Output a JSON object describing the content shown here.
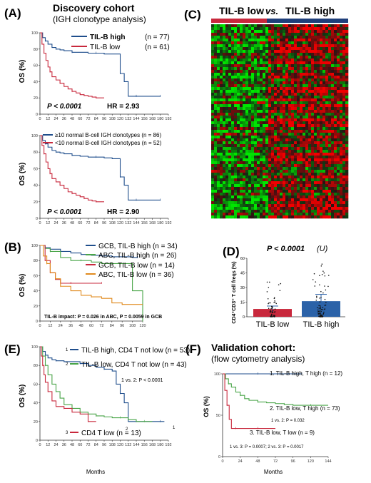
{
  "colors": {
    "blue": "#1f4e8c",
    "red": "#c8283c",
    "green": "#49a548",
    "orange": "#e08a1e",
    "bar_red": "#c8283c",
    "bar_blue": "#2b62a8"
  },
  "A": {
    "panel": "(A)",
    "cohort": "Discovery cohort",
    "cohort_sub": "(IGH clonotype analysis)",
    "ylabel": "OS (%)",
    "top": {
      "legend": [
        {
          "name": "TIL-B high",
          "n": "(n = 77)"
        },
        {
          "name": "TIL-B low",
          "n": "(n = 61)"
        }
      ],
      "pvalue": "P < 0.0001",
      "hr": "HR = 2.93"
    },
    "bottom": {
      "legend": [
        {
          "name": "≥10 normal B-cell IGH clonotypes (n = 86)"
        },
        {
          "name": "<10 normal B-cell IGH clonotypes (n = 52)"
        }
      ],
      "pvalue": "P < 0.0001",
      "hr": "HR = 2.90"
    }
  },
  "C": {
    "panel": "(C)",
    "low": "TIL-B low",
    "vs": "vs.",
    "high": "TIL-B high"
  },
  "B": {
    "panel": "(B)",
    "ylabel": "OS (%)",
    "legend": [
      {
        "label": "GCB, TIL-B high (n = 34)"
      },
      {
        "label": "ABC, TIL-B high (n = 26)"
      },
      {
        "label": "GCB, TIL-B low (n = 14)"
      },
      {
        "label": "ABC, TIL-B low (n = 36)"
      }
    ],
    "impact": "TIL-B impact: P = 0.026 in ABC, P = 0.0059 in GCB"
  },
  "D": {
    "panel": "(D)",
    "pvalue": "P < 0.0001",
    "test": "(U)",
    "ylabel": "CD4⁺CD3⁺ T cell freqs (%)",
    "categories": [
      "TIL-B low",
      "TIL-B high"
    ]
  },
  "E": {
    "panel": "(E)",
    "ylabel": "OS (%)",
    "xlabel": "Months",
    "legend": [
      {
        "num": "1",
        "label": "TIL-B high, CD4 T not low (n = 53)"
      },
      {
        "num": "2",
        "label": "TIL-B low, CD4 T not low (n = 43)"
      },
      {
        "num": "3",
        "label": "CD4 T low (n = 13)"
      }
    ],
    "compare": "1 vs. 2: P < 0.0001",
    "end_labels": [
      "2",
      "1"
    ]
  },
  "F": {
    "panel": "(F)",
    "cohort": "Validation cohort:",
    "cohort_sub": "(flow cytometry analysis)",
    "ylabel": "OS (%)",
    "xlabel": "Months",
    "legend": [
      {
        "label": "1. TIL-B high, T high (n = 12)"
      },
      {
        "label": "2. TIL-B low, T high (n = 73)"
      },
      {
        "label": "3. TIL-B low, T low (n = 9)"
      }
    ],
    "cmp12": "1 vs. 2: P = 0.032",
    "cmp13": "1 vs. 3: P = 0.0007; 2 vs. 3: P = 0.0017"
  },
  "chart_data": [
    {
      "type": "line",
      "id": "A_top",
      "xlim": [
        0,
        192
      ],
      "ylim": [
        0,
        100
      ],
      "x_ticks": [
        0,
        12,
        24,
        36,
        48,
        60,
        72,
        84,
        96,
        108,
        120,
        132,
        144,
        156,
        168,
        180,
        192
      ],
      "y_ticks": [
        0,
        20,
        40,
        60,
        80,
        100
      ],
      "series": [
        {
          "name": "TIL-B high",
          "color": "#1f4e8c",
          "x": [
            0,
            4,
            8,
            12,
            18,
            24,
            30,
            36,
            48,
            60,
            72,
            84,
            96,
            108,
            120,
            126,
            132,
            144,
            156,
            168,
            180
          ],
          "y": [
            100,
            94,
            90,
            86,
            82,
            80,
            79,
            78,
            76,
            76,
            75,
            75,
            74,
            74,
            50,
            40,
            22,
            22,
            22,
            22,
            22
          ]
        },
        {
          "name": "TIL-B low",
          "color": "#c8283c",
          "x": [
            0,
            3,
            6,
            9,
            12,
            15,
            18,
            24,
            30,
            36,
            42,
            48,
            54,
            60,
            66,
            72,
            78,
            84,
            96
          ],
          "y": [
            100,
            86,
            75,
            66,
            58,
            52,
            46,
            42,
            38,
            34,
            31,
            28,
            26,
            24,
            23,
            22,
            21,
            20,
            20
          ]
        }
      ]
    },
    {
      "type": "line",
      "id": "A_bottom",
      "xlim": [
        0,
        192
      ],
      "ylim": [
        0,
        100
      ],
      "x_ticks": [
        0,
        12,
        24,
        36,
        48,
        60,
        72,
        84,
        96,
        108,
        120,
        132,
        144,
        156,
        168,
        180,
        192
      ],
      "y_ticks": [
        0,
        20,
        40,
        60,
        80,
        100
      ],
      "series": [
        {
          "name": "≥10 normal B-cell IGH clonotypes",
          "color": "#1f4e8c",
          "x": [
            0,
            4,
            8,
            12,
            18,
            24,
            30,
            36,
            48,
            60,
            72,
            84,
            96,
            108,
            120,
            126,
            132,
            144,
            156,
            168,
            180
          ],
          "y": [
            100,
            94,
            90,
            86,
            82,
            80,
            79,
            78,
            76,
            75,
            74,
            74,
            73,
            72,
            50,
            40,
            22,
            22,
            22,
            22,
            22
          ]
        },
        {
          "name": "<10 normal B-cell IGH clonotypes",
          "color": "#c8283c",
          "x": [
            0,
            3,
            6,
            9,
            12,
            15,
            18,
            24,
            30,
            36,
            42,
            48,
            54,
            60,
            66,
            72,
            78,
            84,
            96
          ],
          "y": [
            100,
            88,
            78,
            68,
            60,
            54,
            48,
            44,
            40,
            36,
            32,
            30,
            28,
            26,
            24,
            22,
            21,
            20,
            20
          ]
        }
      ]
    },
    {
      "type": "line",
      "id": "B",
      "xlim": [
        0,
        120
      ],
      "ylim": [
        0,
        100
      ],
      "x_ticks": [
        0,
        12,
        24,
        36,
        48,
        60,
        72,
        84,
        96,
        108,
        120
      ],
      "y_ticks": [
        0,
        20,
        40,
        60,
        80,
        100
      ],
      "series": [
        {
          "name": "GCB, TIL-B high",
          "color": "#1f4e8c",
          "x": [
            0,
            6,
            12,
            24,
            36,
            48,
            60,
            72,
            84,
            96,
            108,
            114
          ],
          "y": [
            100,
            97,
            95,
            92,
            90,
            88,
            87,
            86,
            85,
            85,
            84,
            84
          ]
        },
        {
          "name": "ABC, TIL-B high",
          "color": "#49a548",
          "x": [
            0,
            6,
            12,
            24,
            36,
            48,
            60,
            72,
            84,
            96,
            108,
            120
          ],
          "y": [
            100,
            96,
            92,
            84,
            80,
            80,
            78,
            76,
            76,
            76,
            40,
            0
          ]
        },
        {
          "name": "GCB, TIL-B low",
          "color": "#c8283c",
          "x": [
            0,
            6,
            12,
            18,
            24,
            36,
            48,
            60,
            72
          ],
          "y": [
            100,
            80,
            64,
            55,
            50,
            50,
            50,
            50,
            50
          ]
        },
        {
          "name": "ABC, TIL-B low",
          "color": "#e08a1e",
          "x": [
            0,
            4,
            8,
            12,
            18,
            24,
            36,
            48,
            60,
            72,
            84,
            96,
            108,
            120
          ],
          "y": [
            100,
            86,
            76,
            64,
            56,
            46,
            40,
            34,
            32,
            30,
            24,
            22,
            22,
            22
          ]
        }
      ]
    },
    {
      "type": "bar",
      "id": "D",
      "categories": [
        "TIL-B low",
        "TIL-B high"
      ],
      "values": [
        8,
        16
      ],
      "error": [
        3,
        7
      ],
      "ylim": [
        0,
        60
      ],
      "y_ticks": [
        0,
        15,
        30,
        45,
        60
      ]
    },
    {
      "type": "line",
      "id": "E",
      "xlim": [
        0,
        192
      ],
      "ylim": [
        0,
        100
      ],
      "x_ticks": [
        0,
        12,
        24,
        36,
        48,
        60,
        72,
        84,
        96,
        108,
        120,
        132,
        144,
        156,
        168,
        180,
        192
      ],
      "y_ticks": [
        0,
        20,
        40,
        60,
        80,
        100
      ],
      "series": [
        {
          "name": "TIL-B high, CD4 T not low",
          "color": "#1f4e8c",
          "x": [
            0,
            4,
            8,
            12,
            18,
            24,
            36,
            48,
            60,
            72,
            84,
            96,
            108,
            114,
            120,
            126,
            132,
            144,
            156,
            168,
            180,
            186
          ],
          "y": [
            100,
            95,
            91,
            88,
            86,
            85,
            84,
            84,
            82,
            80,
            78,
            76,
            74,
            60,
            50,
            40,
            20,
            20,
            20,
            20,
            20,
            20
          ]
        },
        {
          "name": "TIL-B low, CD4 T not low",
          "color": "#49a548",
          "x": [
            0,
            4,
            8,
            12,
            18,
            24,
            30,
            36,
            48,
            60,
            72,
            84,
            96,
            108,
            120,
            132,
            144,
            156,
            168
          ],
          "y": [
            100,
            90,
            80,
            70,
            60,
            52,
            45,
            38,
            34,
            30,
            28,
            26,
            25,
            24,
            24,
            22,
            20,
            20,
            20
          ]
        },
        {
          "name": "CD4 T low",
          "color": "#c8283c",
          "x": [
            0,
            2,
            4,
            6,
            8,
            12,
            18,
            24,
            36,
            48,
            60,
            72,
            84
          ],
          "y": [
            100,
            90,
            80,
            70,
            62,
            52,
            42,
            36,
            34,
            30,
            28,
            20,
            20
          ]
        }
      ]
    },
    {
      "type": "line",
      "id": "F",
      "xlim": [
        0,
        144
      ],
      "ylim": [
        0,
        100
      ],
      "x_ticks": [
        0,
        24,
        48,
        72,
        96,
        120,
        144
      ],
      "y_ticks": [
        0,
        50,
        100
      ],
      "series": [
        {
          "name": "1. TIL-B high, T high",
          "color": "#1f4e8c",
          "x": [
            0,
            24,
            48,
            72,
            96,
            108
          ],
          "y": [
            100,
            100,
            100,
            100,
            100,
            100
          ]
        },
        {
          "name": "2. TIL-B low, T high",
          "color": "#49a548",
          "x": [
            0,
            4,
            8,
            12,
            18,
            24,
            30,
            36,
            48,
            60,
            72,
            84,
            96,
            108,
            120,
            132,
            144
          ],
          "y": [
            100,
            94,
            88,
            84,
            78,
            74,
            70,
            68,
            66,
            65,
            64,
            63,
            62,
            62,
            62,
            62,
            62
          ]
        },
        {
          "name": "3. TIL-B low, T low",
          "color": "#c8283c",
          "x": [
            0,
            3,
            6,
            9,
            12,
            18,
            24,
            36,
            48,
            60,
            72
          ],
          "y": [
            100,
            80,
            62,
            45,
            34,
            34,
            34,
            34,
            34,
            34,
            34
          ]
        }
      ]
    }
  ]
}
